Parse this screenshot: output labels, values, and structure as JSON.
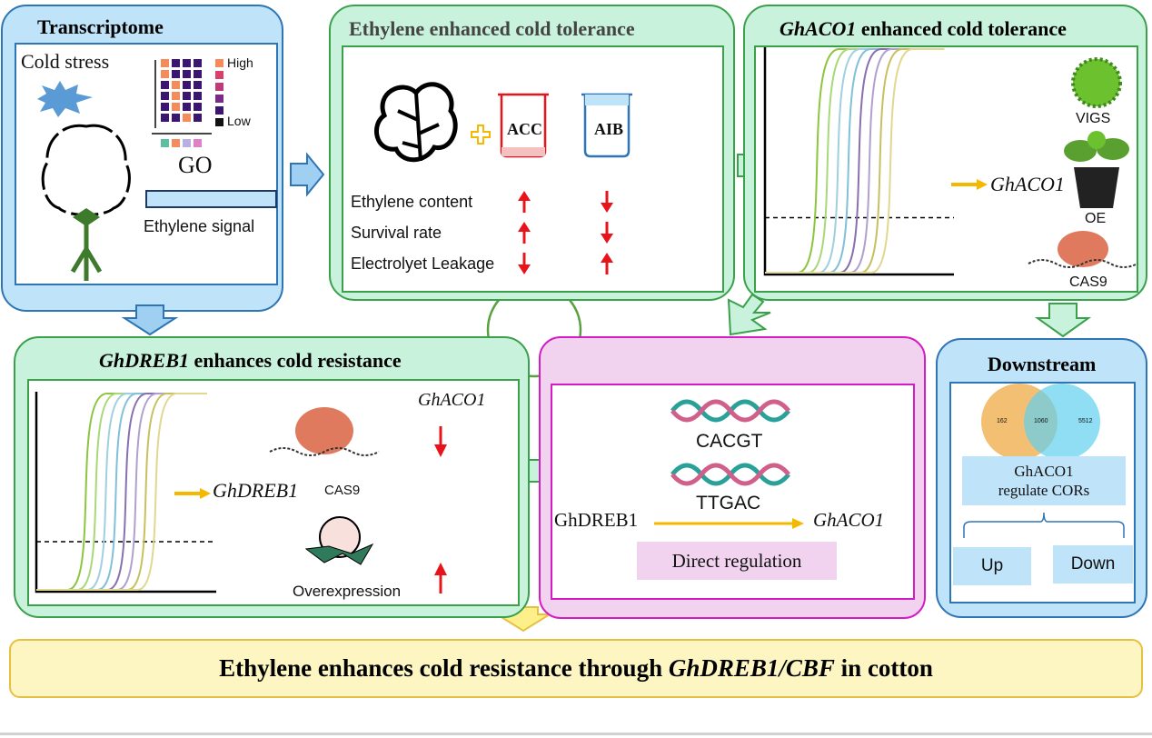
{
  "transcriptome": {
    "title": "Transcriptome",
    "cold_stress": "Cold stress",
    "high": "High",
    "low": "Low",
    "go": "GO",
    "ethylene_signal": "Ethylene signal"
  },
  "ethylene_panel": {
    "title": "Ethylene enhanced cold tolerance",
    "acc": "ACC",
    "aib": "AIB",
    "rows": [
      {
        "label": "Ethylene content",
        "acc": "up",
        "aib": "down"
      },
      {
        "label": "Survival rate",
        "acc": "up",
        "aib": "down"
      },
      {
        "label": "Electrolyet Leakage",
        "acc": "down",
        "aib": "up"
      }
    ]
  },
  "aco1_panel": {
    "title_gene": "GhACO1",
    "title_rest": " enhanced cold tolerance",
    "gene": "GhACO1",
    "vigs": "VIGS",
    "oe": "OE",
    "cas9": "CAS9"
  },
  "dreb1_panel": {
    "title_gene": "GhDREB1",
    "title_rest": " enhances cold resistance",
    "gene": "GhDREB1",
    "target": "GhACO1",
    "cas9": "CAS9",
    "overexpression": "Overexpression"
  },
  "regulation_panel": {
    "motif1": "CACGT",
    "motif2": "TTGAC",
    "source": "GhDREB1",
    "target": "GhACO1",
    "label": "Direct regulation"
  },
  "downstream": {
    "title": "Downstream",
    "venn": [
      "162",
      "1060",
      "5512"
    ],
    "box": "GhACO1 regulate CORs",
    "up": "Up",
    "down": "Down"
  },
  "conclusion": {
    "pre": "Ethylene enhances cold resistance through ",
    "gene": "GhDREB1/CBF",
    "post": " in cotton"
  },
  "colors": {
    "blue_fill": "#bfe3f8",
    "blue_border": "#2e75b6",
    "mint_fill": "#c9f2dd",
    "green_border": "#3aa04a",
    "pink_fill": "#f1d3ef",
    "magenta": "#d31cc4",
    "yellow_fill": "#fdf6c3",
    "arrow_red": "#e8141c",
    "arrow_orange": "#f5b800"
  }
}
